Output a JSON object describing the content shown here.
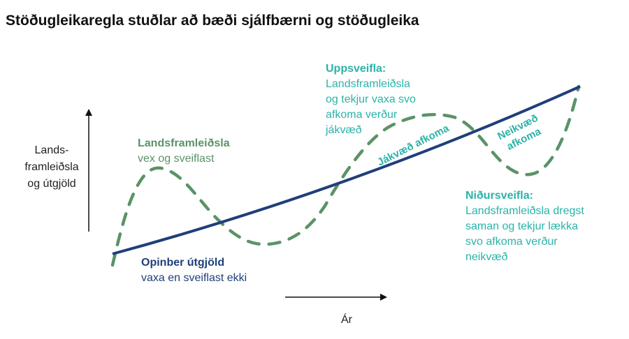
{
  "title": "Stöðugleikaregla stuðlar að bæði sjálfbærni og stöðugleika",
  "colors": {
    "navy": "#1f3f7a",
    "green": "#5a9367",
    "teal": "#2bb3a8"
  },
  "axes": {
    "y_label": [
      "Lands-",
      "framleiðsla",
      "og útgjöld"
    ],
    "x_label": "Ár"
  },
  "labels": {
    "gdp": {
      "title": "Landsframleiðsla",
      "lines": [
        "vex og sveiflast"
      ]
    },
    "spending": {
      "title": "Opinber útgjöld",
      "lines": [
        "vaxa en sveiflast ekki"
      ]
    },
    "upswing": {
      "title": "Uppsveifla:",
      "lines": [
        "Landsframleiðsla",
        "og tekjur vaxa svo",
        "afkoma verður",
        "jákvæð"
      ]
    },
    "downswing": {
      "title": "Niðursveifla:",
      "lines": [
        "Landsframleiðsla dregst",
        "saman og tekjur lækka",
        "svo afkoma verður",
        "neikvæð"
      ]
    },
    "positive": "Jákvæð afkoma",
    "negative": [
      "Neikvæð",
      "afkoma"
    ]
  }
}
